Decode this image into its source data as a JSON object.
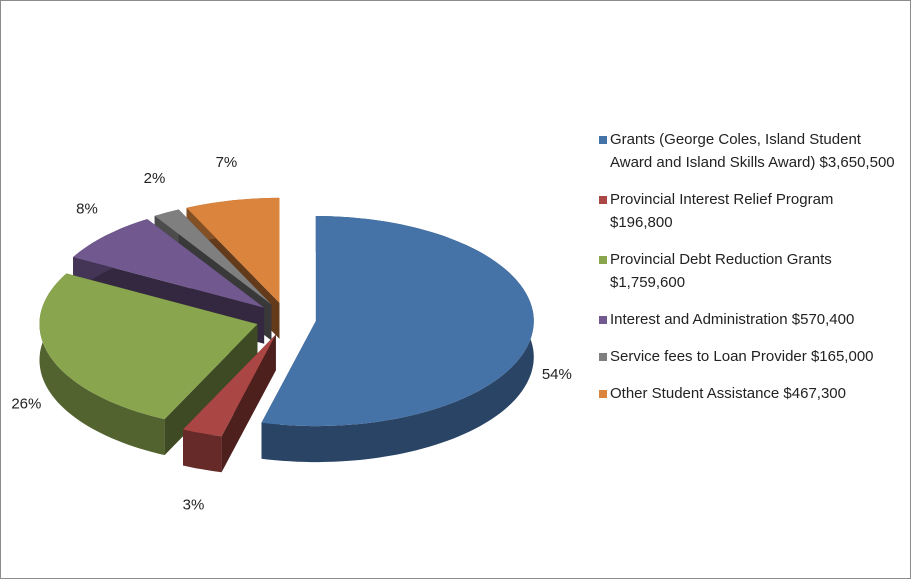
{
  "chart_data": {
    "type": "pie",
    "categories": [
      "Grants (George Coles, Island Student Award and Island Skills Award) $3,650,500",
      "Provincial Interest Relief Program $196,800",
      "Provincial Debt Reduction Grants $1,759,600",
      "Interest and Administration $570,400",
      "Service fees to Loan Provider $165,000",
      "Other Student Assistance  $467,300"
    ],
    "values": [
      54,
      3,
      26,
      8,
      2,
      7
    ],
    "value_labels": [
      "54%",
      "3%",
      "26%",
      "8%",
      "2%",
      "7%"
    ],
    "colors": [
      "#4572a7",
      "#aa4643",
      "#89a54e",
      "#71588f",
      "#7f7f7f",
      "#db843d"
    ],
    "legend": "right"
  }
}
